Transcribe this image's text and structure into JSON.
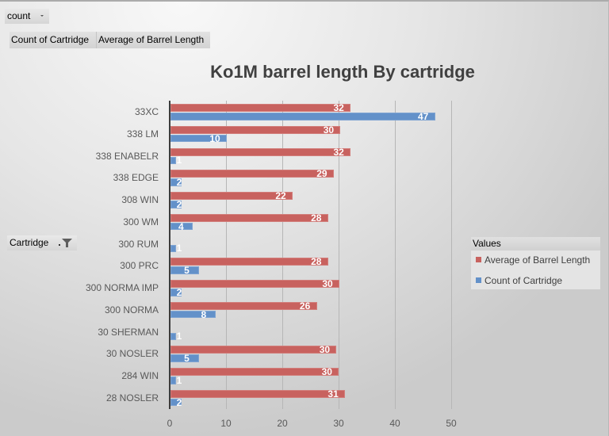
{
  "pivot_controls": {
    "report_filter": {
      "label": "count",
      "icon": "dropdown-arrow-icon"
    },
    "value_fields": [
      {
        "label": "Count of Cartridge"
      },
      {
        "label": "Average of Barrel Length"
      }
    ],
    "axis_field": {
      "label": "Cartridge",
      "icons": [
        "dropdown-arrow-icon",
        "filter-funnel-icon"
      ]
    }
  },
  "legend": {
    "title": "Values",
    "items": [
      {
        "label": "Average of Barrel Length",
        "color": "#c8625f"
      },
      {
        "label": "Count of Cartridge",
        "color": "#6391c9"
      }
    ]
  },
  "chart_data": {
    "type": "bar",
    "orientation": "horizontal",
    "title": "Ko1M barrel length By cartridge",
    "xlabel": "",
    "ylabel": "",
    "xlim": [
      0,
      50
    ],
    "x_ticks": [
      0,
      10,
      20,
      30,
      40,
      50
    ],
    "grid": true,
    "legend_position": "right",
    "data_labels": "inside-end",
    "categories": [
      "33XC",
      "338 LM",
      "338 ENABELR",
      "338 EDGE",
      "308 WIN",
      "300 WM",
      "300 RUM",
      "300 PRC",
      "300 NORMA IMP",
      "300 NORMA",
      "30 SHERMAN",
      "30 NOSLER",
      "284 WIN",
      "28 NOSLER"
    ],
    "series": [
      {
        "name": "Average of Barrel Length",
        "color": "#c8625f",
        "values": [
          32,
          30.2,
          32,
          29,
          21.7,
          28,
          null,
          28,
          30,
          26,
          null,
          29.5,
          29.9,
          31
        ],
        "labels": [
          "32",
          "30",
          "32",
          "29",
          "22",
          "28",
          "",
          "28",
          "30",
          "26",
          "",
          "30",
          "30",
          "31"
        ]
      },
      {
        "name": "Count of Cartridge",
        "color": "#6391c9",
        "values": [
          47,
          10,
          1,
          2,
          2,
          4,
          1,
          5,
          2,
          8,
          1,
          5,
          1,
          2
        ],
        "labels": [
          "47",
          "10",
          "1",
          "2",
          "2",
          "4",
          "1",
          "5",
          "2",
          "8",
          "1",
          "5",
          "1",
          "2"
        ]
      }
    ]
  }
}
